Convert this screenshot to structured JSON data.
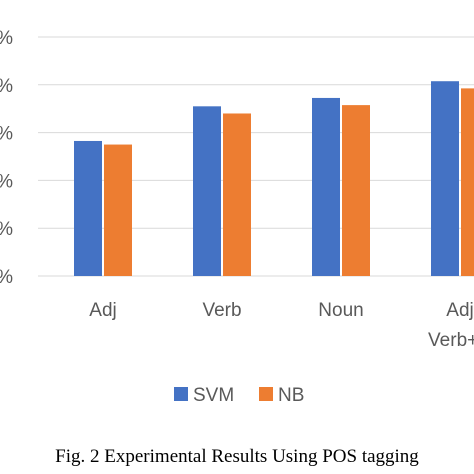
{
  "chart_data": {
    "type": "bar",
    "title": "",
    "xlabel": "",
    "ylabel": "",
    "categories": [
      {
        "lines": [
          "Adj"
        ]
      },
      {
        "lines": [
          "Verb"
        ]
      },
      {
        "lines": [
          "Noun"
        ]
      },
      {
        "lines": [
          "Adj",
          "Verb+N"
        ]
      }
    ],
    "series": [
      {
        "name": "SVM",
        "color": "#4472c4",
        "values": [
          56.5,
          71.0,
          74.5,
          81.5
        ]
      },
      {
        "name": "NB",
        "color": "#ed7d31",
        "values": [
          55.0,
          68.0,
          71.5,
          78.5
        ]
      }
    ],
    "ylim": [
      0,
      100
    ],
    "y_ticks": [
      "%",
      "%",
      "%",
      "%",
      "%",
      "%"
    ],
    "grid": true,
    "legend": {
      "position": "bottom",
      "items": [
        "SVM",
        "NB"
      ]
    }
  },
  "caption": {
    "text": "Fig. 2 Experimental Results Using POS tagging"
  }
}
